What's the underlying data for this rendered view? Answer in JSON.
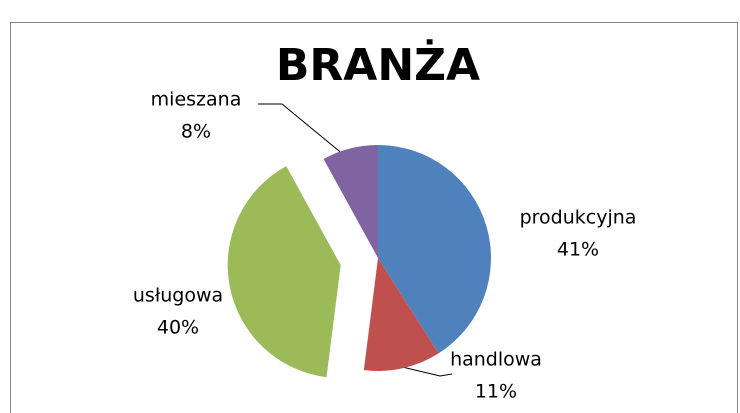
{
  "chart_data": {
    "type": "pie",
    "title": "BRANŻA",
    "categories": [
      "produkcyjna",
      "handlowa",
      "usługowa",
      "mieszana"
    ],
    "values": [
      41,
      11,
      40,
      8
    ],
    "value_labels": [
      "41%",
      "11%",
      "40%",
      "8%"
    ],
    "colors": [
      "#4f81bd",
      "#c0504d",
      "#9bbb59",
      "#8064a2"
    ]
  }
}
